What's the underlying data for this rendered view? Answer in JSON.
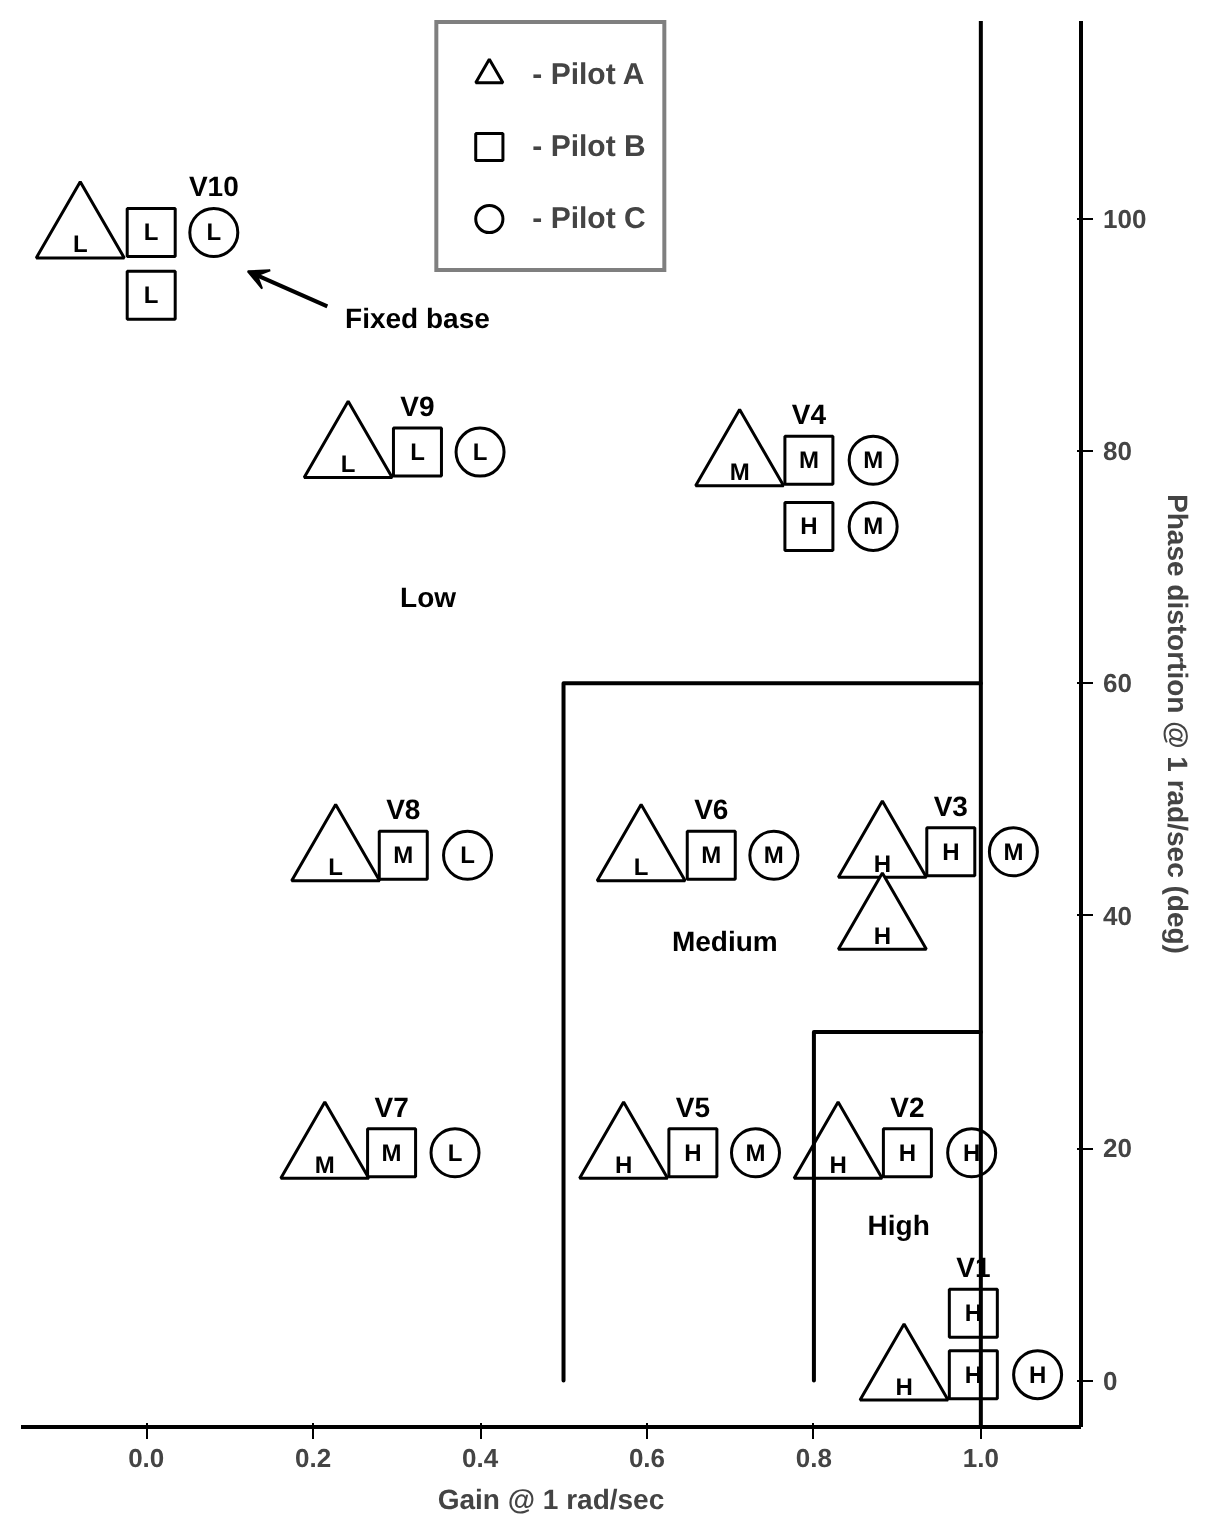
{
  "chart_data": {
    "type": "scatter",
    "xlabel": "Gain @ 1 rad/sec",
    "ylabel": "Phase distortion @ 1 rad/sec (deg)",
    "xlim": [
      -0.15,
      1.12
    ],
    "ylim": [
      -4,
      117
    ],
    "xticks": [
      {
        "value": 0,
        "label": "0.0"
      },
      {
        "value": 0.2,
        "label": "0.2"
      },
      {
        "value": 0.4,
        "label": "0.4"
      },
      {
        "value": 0.6,
        "label": "0.6"
      },
      {
        "value": 0.8,
        "label": "0.8"
      },
      {
        "value": 1,
        "label": "1.0"
      }
    ],
    "yticks": [
      0,
      20,
      40,
      60,
      80,
      100
    ],
    "grid": false,
    "legend": "top center",
    "series": [
      {
        "name": "- Pilot A",
        "marker": "triangle",
        "color": "#000000",
        "x": [
          -0.079,
          0.242,
          0.711,
          0.227,
          0.593,
          0.882,
          0.882,
          0.214,
          0.572,
          0.829,
          0.908
        ],
        "values": [
          98.8,
          79.9,
          79.2,
          45.2,
          45.2,
          45.5,
          39.3,
          19.6,
          19.6,
          19.6,
          0.5
        ],
        "value_labels": [
          "L",
          "L",
          "M",
          "L",
          "L",
          "H",
          "H",
          "M",
          "H",
          "H",
          "H"
        ]
      },
      {
        "name": "- Pilot B",
        "marker": "square",
        "color": "#000000",
        "x": [
          0.006,
          0.006,
          0.325,
          0.794,
          0.794,
          0.308,
          0.677,
          0.964,
          0.294,
          0.655,
          0.912,
          0.991,
          0.991
        ],
        "values": [
          98.8,
          93.4,
          79.9,
          79.2,
          73.5,
          45.2,
          45.2,
          45.5,
          19.6,
          19.6,
          19.6,
          5.8,
          0.5
        ],
        "value_labels": [
          "L",
          "L",
          "L",
          "M",
          "H",
          "M",
          "M",
          "H",
          "M",
          "H",
          "H",
          "H",
          "H"
        ]
      },
      {
        "name": "- Pilot C",
        "marker": "circle",
        "color": "#000000",
        "x": [
          0.081,
          0.4,
          0.871,
          0.871,
          0.385,
          0.752,
          1.039,
          0.37,
          0.73,
          0.989,
          1.068
        ],
        "values": [
          98.8,
          79.9,
          79.2,
          73.5,
          45.2,
          45.2,
          45.5,
          19.6,
          19.6,
          19.6,
          0.5
        ],
        "value_labels": [
          "L",
          "L",
          "M",
          "M",
          "L",
          "M",
          "M",
          "L",
          "M",
          "H",
          "H"
        ]
      },
      {
        "type": "line",
        "color": "#000000",
        "x": [
          0.5,
          0.5,
          1.0
        ],
        "values": [
          0,
          60,
          60
        ]
      },
      {
        "type": "line",
        "color": "#000000",
        "x": [
          0.8,
          0.8,
          1.0
        ],
        "values": [
          0,
          30,
          30
        ]
      }
    ],
    "ref_lines": [
      {
        "axis": "x",
        "value": 1.0,
        "color": "#000000"
      }
    ],
    "annotations": [
      {
        "text": "V10",
        "x": 0.081,
        "y": 98.8
      },
      {
        "text": "V9",
        "x": 0.325,
        "y": 79.9
      },
      {
        "text": "V4",
        "x": 0.794,
        "y": 79.2
      },
      {
        "text": "V8",
        "x": 0.308,
        "y": 45.2
      },
      {
        "text": "V6",
        "x": 0.677,
        "y": 45.2
      },
      {
        "text": "V3",
        "x": 0.964,
        "y": 45.5
      },
      {
        "text": "V7",
        "x": 0.294,
        "y": 19.6
      },
      {
        "text": "V5",
        "x": 0.655,
        "y": 19.6
      },
      {
        "text": "V2",
        "x": 0.912,
        "y": 19.6
      },
      {
        "text": "V1",
        "x": 0.991,
        "y": 5.8
      },
      "Low",
      "Medium",
      "High",
      "Fixed base"
    ]
  }
}
